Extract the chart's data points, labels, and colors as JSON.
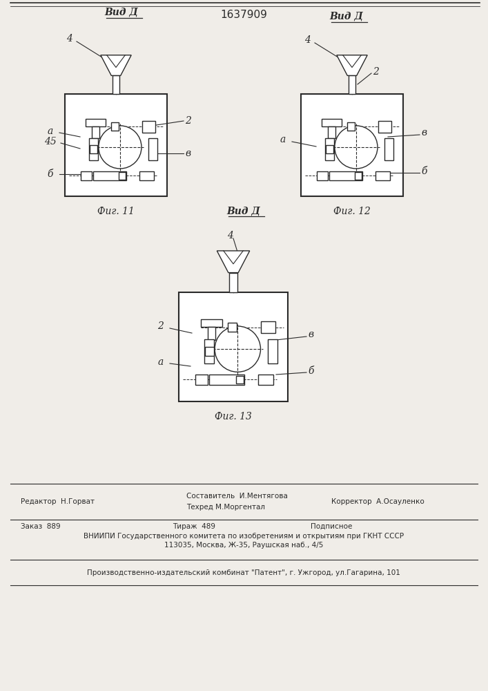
{
  "title_number": "1637909",
  "bg_color": "#f0ede8",
  "line_color": "#2a2a2a",
  "fig11_label": "Фиг. 11",
  "fig12_label": "Фиг. 12",
  "fig13_label": "Фиг. 13",
  "vid_d_label": "Вид Д",
  "footer_ed": "Редактор  Н.Горват",
  "footer_sost": "Составитель  И.Ментягова",
  "footer_tech": "Техред М.Моргентал",
  "footer_corr": "Корректор  А.Осауленко",
  "footer_zakaz": "Заказ  889",
  "footer_tirazh": "Тираж  489",
  "footer_podp": "Подписное",
  "footer_vniip": "ВНИИПИ Государственного комитета по изобретениям и открытиям при ГКНТ СССР",
  "footer_addr": "113035, Москва, Ж-35, Раушская наб., 4/5",
  "footer_patent": "Производственно-издательский комбинат \"Патент\", г. Ужгород, ул.Гагарина, 101"
}
